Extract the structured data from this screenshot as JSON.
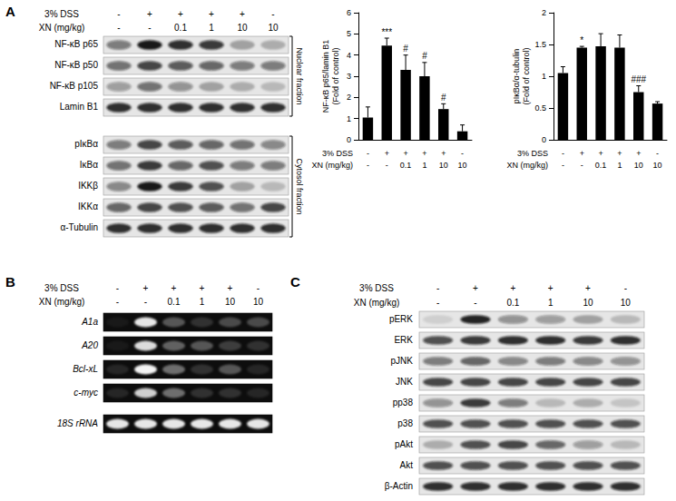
{
  "chart_data": [
    {
      "type": "bar",
      "ylabel": "NF-κB p65/lamin B1\n(Fold of control)",
      "x_rows": [
        {
          "label": "3% DSS",
          "values": [
            "-",
            "+",
            "+",
            "+",
            "+",
            "-"
          ]
        },
        {
          "label": "XN (mg/kg)",
          "values": [
            "-",
            "-",
            "0.1",
            "1",
            "10",
            "10"
          ]
        }
      ],
      "values": [
        1.05,
        4.45,
        3.3,
        3.0,
        1.45,
        0.4
      ],
      "errors": [
        0.5,
        0.35,
        0.7,
        0.65,
        0.25,
        0.3
      ],
      "significance": [
        null,
        "***",
        "#",
        "#",
        "#",
        null
      ],
      "color": "#000000",
      "ylim": [
        0,
        6
      ],
      "yticks": [
        0,
        1,
        2,
        3,
        4,
        5,
        6
      ],
      "grid": false
    },
    {
      "type": "bar",
      "ylabel": "pIκBα/α-tubulin\n(Fold of control)",
      "x_rows": [
        {
          "label": "3% DSS",
          "values": [
            "-",
            "+",
            "+",
            "+",
            "+",
            "-"
          ]
        },
        {
          "label": "XN (mg/kg)",
          "values": [
            "-",
            "-",
            "0.1",
            "1",
            "10",
            "10"
          ]
        }
      ],
      "values": [
        1.05,
        1.45,
        1.47,
        1.45,
        0.75,
        0.57
      ],
      "errors": [
        0.1,
        0.02,
        0.2,
        0.2,
        0.1,
        0.03
      ],
      "significance": [
        null,
        "*",
        null,
        null,
        "###",
        null
      ],
      "color": "#000000",
      "ylim": [
        0,
        2
      ],
      "yticks": [
        0,
        0.5,
        1,
        1.5,
        2
      ],
      "grid": false
    }
  ],
  "panels": [
    {
      "label": "A",
      "type": "western_blot",
      "header_rows": [
        {
          "label": "3% DSS",
          "values": [
            "-",
            "+",
            "+",
            "+",
            "+",
            "-"
          ]
        },
        {
          "label": "XN (mg/kg)",
          "values": [
            "-",
            "-",
            "0.1",
            "1",
            "10",
            "10"
          ]
        }
      ],
      "groups": [
        {
          "label": "Nuclear fraction",
          "rows": [
            {
              "label": "NF-κB p65",
              "intensity": [
                0.5,
                0.95,
                0.85,
                0.8,
                0.3,
                0.25
              ]
            },
            {
              "label": "NF-κB p50",
              "intensity": [
                0.55,
                0.75,
                0.65,
                0.6,
                0.5,
                0.5
              ]
            },
            {
              "label": "NF-κB p105",
              "intensity": [
                0.35,
                0.55,
                0.4,
                0.3,
                0.25,
                0.2
              ]
            },
            {
              "label": "Lamin B1",
              "intensity": [
                0.85,
                0.85,
                0.85,
                0.85,
                0.85,
                0.85
              ]
            }
          ]
        },
        {
          "label": "Cytosol fraction",
          "rows": [
            {
              "label": "pIκBα",
              "intensity": [
                0.5,
                0.75,
                0.65,
                0.6,
                0.55,
                0.45
              ]
            },
            {
              "label": "IκBα",
              "intensity": [
                0.55,
                0.8,
                0.6,
                0.7,
                0.5,
                0.5
              ]
            },
            {
              "label": "IKKβ",
              "intensity": [
                0.45,
                0.95,
                0.8,
                0.7,
                0.3,
                0.2
              ]
            },
            {
              "label": "IKKα",
              "intensity": [
                0.6,
                0.75,
                0.7,
                0.65,
                0.55,
                0.75
              ]
            },
            {
              "label": "α-Tubulin",
              "intensity": [
                0.85,
                0.85,
                0.85,
                0.85,
                0.85,
                0.85
              ]
            }
          ]
        }
      ]
    },
    {
      "label": "B",
      "type": "gel",
      "header_rows": [
        {
          "label": "3% DSS",
          "values": [
            "-",
            "+",
            "+",
            "+",
            "+",
            "-"
          ]
        },
        {
          "label": "XN (mg/kg)",
          "values": [
            "-",
            "-",
            "0.1",
            "1",
            "10",
            "10"
          ]
        }
      ],
      "groups": [
        {
          "rows": [
            {
              "label": "A1a",
              "intensity": [
                0.05,
                0.9,
                0.3,
                0.15,
                0.25,
                0.25
              ]
            },
            {
              "label": "A20",
              "intensity": [
                0.05,
                0.85,
                0.35,
                0.3,
                0.2,
                0.15
              ]
            },
            {
              "label": "Bcl-xL",
              "intensity": [
                0.1,
                0.95,
                0.4,
                0.15,
                0.3,
                0.1
              ]
            },
            {
              "label": "c-myc",
              "intensity": [
                0.1,
                0.8,
                0.4,
                0.15,
                0.15,
                0.1
              ]
            }
          ]
        },
        {
          "rows": [
            {
              "label": "18S rRNA",
              "intensity": [
                0.9,
                0.9,
                0.9,
                0.9,
                0.9,
                0.9
              ]
            }
          ]
        }
      ]
    },
    {
      "label": "C",
      "type": "western_blot",
      "header_rows": [
        {
          "label": "3% DSS",
          "values": [
            "-",
            "+",
            "+",
            "+",
            "+",
            "-"
          ]
        },
        {
          "label": "XN (mg/kg)",
          "values": [
            "-",
            "-",
            "0.1",
            "1",
            "10",
            "10"
          ]
        }
      ],
      "groups": [
        {
          "rows": [
            {
              "label": "pERK",
              "intensity": [
                0.1,
                0.9,
                0.4,
                0.35,
                0.3,
                0.2
              ]
            },
            {
              "label": "ERK",
              "intensity": [
                0.7,
                0.8,
                0.85,
                0.85,
                0.8,
                0.85
              ]
            },
            {
              "label": "pJNK",
              "intensity": [
                0.5,
                0.6,
                0.45,
                0.5,
                0.45,
                0.4
              ]
            },
            {
              "label": "JNK",
              "intensity": [
                0.75,
                0.75,
                0.75,
                0.75,
                0.75,
                0.75
              ]
            },
            {
              "label": "pp38",
              "intensity": [
                0.4,
                0.8,
                0.5,
                0.2,
                0.25,
                0.15
              ]
            },
            {
              "label": "p38",
              "intensity": [
                0.7,
                0.7,
                0.7,
                0.7,
                0.7,
                0.7
              ]
            },
            {
              "label": "pAkt",
              "intensity": [
                0.25,
                0.7,
                0.75,
                0.6,
                0.35,
                0.2
              ]
            },
            {
              "label": "Akt",
              "intensity": [
                0.7,
                0.7,
                0.7,
                0.7,
                0.7,
                0.7
              ]
            },
            {
              "label": "β-Actin",
              "intensity": [
                0.85,
                0.85,
                0.85,
                0.85,
                0.85,
                0.85
              ]
            }
          ]
        }
      ]
    }
  ]
}
